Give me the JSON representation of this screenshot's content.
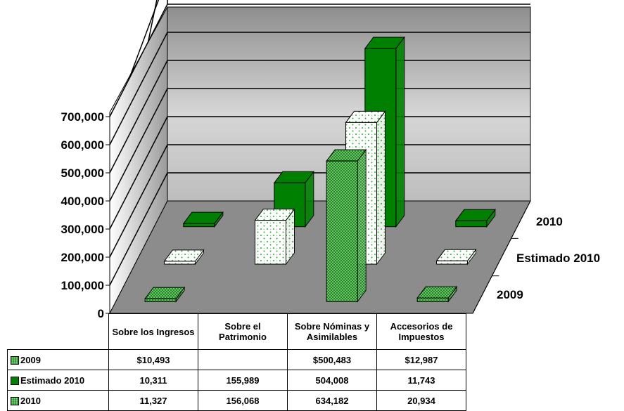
{
  "chart_data": {
    "type": "bar",
    "subtype": "3d-clustered-with-data-table",
    "categories": [
      "Sobre los Ingresos",
      "Sobre el Patrimonio",
      "Sobre Nóminas y Asimilables",
      "Accesorios de Impuestos"
    ],
    "series": [
      {
        "name": "2009",
        "values": [
          10493,
          null,
          500483,
          12987
        ],
        "labels": [
          "$10,493",
          "",
          "$500,483",
          "$12,987"
        ]
      },
      {
        "name": "Estimado 2010",
        "values": [
          10311,
          155989,
          504008,
          11743
        ],
        "labels": [
          "10,311",
          "155,989",
          "504,008",
          "11,743"
        ]
      },
      {
        "name": "2010",
        "values": [
          11327,
          156068,
          634182,
          20934
        ],
        "labels": [
          "11,327",
          "156,068",
          "634,182",
          "20,934"
        ]
      }
    ],
    "yticks": [
      "0",
      "100,000",
      "200,000",
      "300,000",
      "400,000",
      "500,000",
      "600,000",
      "700,000"
    ],
    "ylim": [
      0,
      700000
    ],
    "depth_labels": [
      "2009",
      "Estimado 2010",
      "2010"
    ],
    "grid": true,
    "colors": {
      "series_2009": "#1f8a1f",
      "series_estimado": "#ffffff",
      "series_2010": "#008000",
      "walls": "#a6a6a6",
      "floor": "#8c8c8c"
    }
  }
}
